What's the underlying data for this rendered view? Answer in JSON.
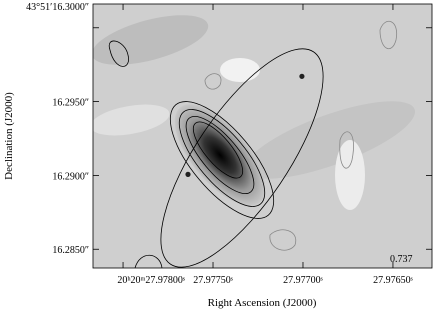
{
  "chart_data": {
    "type": "image",
    "xlabel": "Right Ascension (J2000)",
    "ylabel": "Declination (J2000)",
    "xlim": [
      27.978167,
      27.976283
    ],
    "ylim": [
      16.28373,
      16.30161
    ],
    "xticks": [
      {
        "value": 27.978,
        "label": "20ʰ20ᵐ27.97800ˢ"
      },
      {
        "value": 27.9775,
        "label": "27.97750ˢ"
      },
      {
        "value": 27.977,
        "label": "27.97700ˢ"
      },
      {
        "value": 27.9765,
        "label": "27.97650ˢ"
      }
    ],
    "yticks": [
      {
        "value": 16.285,
        "label": "16.2850″"
      },
      {
        "value": 16.29,
        "label": "16.2900″"
      },
      {
        "value": 16.295,
        "label": "16.2950″"
      },
      {
        "value": 16.3,
        "label": "43°51′16.3000″"
      }
    ],
    "points": {
      "x": [
        27.977006,
        27.977639
      ],
      "y": [
        16.29671,
        16.29007
      ],
      "color": "#222222"
    },
    "annotation": "0.737"
  }
}
